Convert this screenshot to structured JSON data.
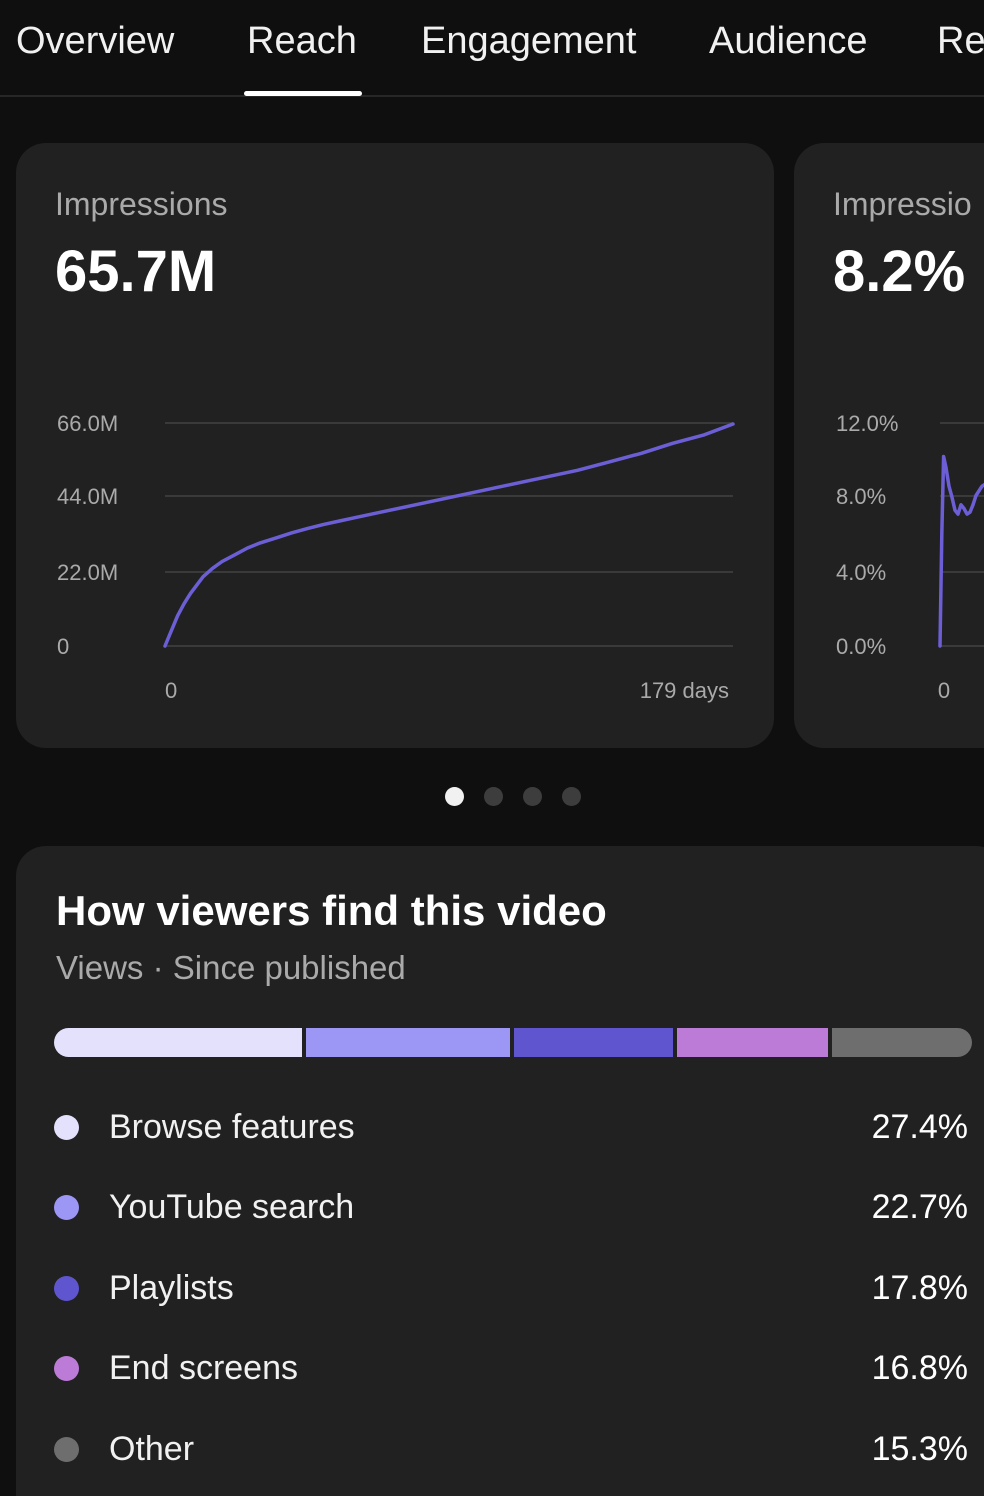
{
  "tabs": [
    {
      "label": "Overview",
      "active": false
    },
    {
      "label": "Reach",
      "active": true
    },
    {
      "label": "Engagement",
      "active": false
    },
    {
      "label": "Audience",
      "active": false
    },
    {
      "label": "Re",
      "active": false
    }
  ],
  "cards": [
    {
      "title": "Impressions",
      "value": "65.7M"
    },
    {
      "title": "Impressio",
      "value": "8.2%"
    }
  ],
  "chart_data": [
    {
      "type": "line",
      "title": "Impressions",
      "y_ticks": [
        "66.0M",
        "44.0M",
        "22.0M",
        "0"
      ],
      "x_ticks": [
        "0",
        "179 days"
      ],
      "ylim": [
        0,
        66
      ],
      "xlim": [
        0,
        179
      ],
      "y_unit": "M",
      "grid": true,
      "color": "#6c5fd6",
      "series": [
        {
          "x": [
            0,
            2,
            4,
            6,
            8,
            10,
            12,
            15,
            18,
            22,
            26,
            30,
            35,
            40,
            45,
            50,
            55,
            60,
            70,
            80,
            90,
            100,
            110,
            120,
            130,
            140,
            150,
            160,
            170,
            179
          ],
          "values": [
            0,
            4.5,
            9,
            12.5,
            15.5,
            18,
            20.5,
            23,
            25,
            27,
            29,
            30.5,
            32,
            33.5,
            34.8,
            36,
            37,
            38,
            40,
            42,
            44,
            46,
            48,
            50,
            52,
            54.5,
            57,
            60,
            62.5,
            65.7
          ]
        }
      ]
    },
    {
      "type": "line",
      "title": "Impressio",
      "y_ticks": [
        "12.0%",
        "8.0%",
        "4.0%",
        "0.0%"
      ],
      "x_ticks": [
        "0"
      ],
      "ylim": [
        0,
        12
      ],
      "y_unit": "%",
      "grid": true,
      "color": "#6c5fd6",
      "series": [
        {
          "x": [
            0,
            0.3,
            0.6,
            1,
            1.5,
            2,
            2.5,
            3,
            3.5,
            4,
            4.5,
            5,
            5.5,
            6,
            7,
            8,
            9,
            10
          ],
          "values": [
            0,
            6,
            10.2,
            9.6,
            8.6,
            8.0,
            7.3,
            7.1,
            7.6,
            7.4,
            7.1,
            7.2,
            7.6,
            8.1,
            8.6,
            8.8,
            8.9,
            9.0
          ]
        }
      ]
    }
  ],
  "pager": {
    "count": 4,
    "active": 0
  },
  "traffic": {
    "title": "How viewers find this video",
    "subtitle": "Views · Since published",
    "sources": [
      {
        "label": "Browse features",
        "value": "27.4%",
        "percent": 27.4,
        "color": "#e4e1fc"
      },
      {
        "label": "YouTube search",
        "value": "22.7%",
        "percent": 22.7,
        "color": "#9c96f5"
      },
      {
        "label": "Playlists",
        "value": "17.8%",
        "percent": 17.8,
        "color": "#5f56cf"
      },
      {
        "label": "End screens",
        "value": "16.8%",
        "percent": 16.8,
        "color": "#bc7bd6"
      },
      {
        "label": "Other",
        "value": "15.3%",
        "percent": 15.3,
        "color": "#6e6e6e"
      }
    ]
  }
}
